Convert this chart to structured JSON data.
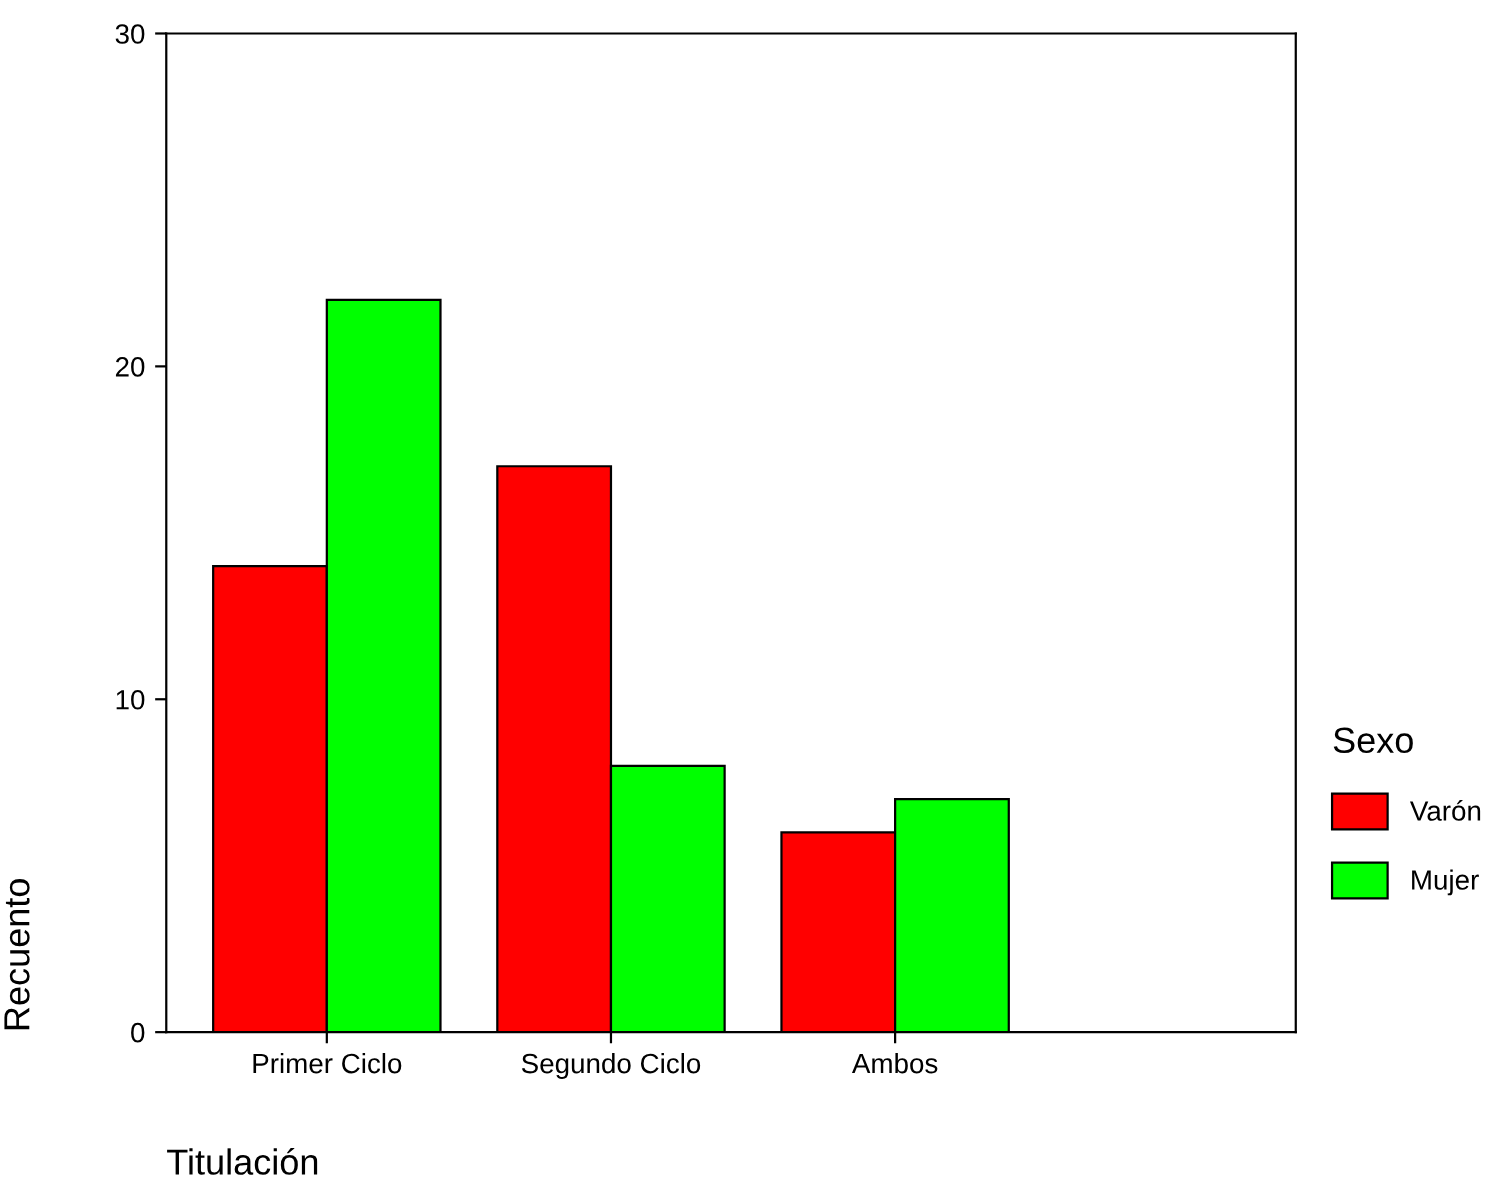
{
  "chart_data": {
    "type": "bar",
    "xlabel": "Titulación",
    "ylabel": "Recuento",
    "legend_title": "Sexo",
    "categories": [
      "Primer Ciclo",
      "Segundo Ciclo",
      "Ambos"
    ],
    "series": [
      {
        "name": "Varón",
        "color": "#ff0000",
        "values": [
          14,
          17,
          6
        ]
      },
      {
        "name": "Mujer",
        "color": "#00ff00",
        "values": [
          22,
          8,
          7
        ]
      }
    ],
    "ylim": [
      0,
      30
    ],
    "yticks": [
      0,
      10,
      20,
      30
    ],
    "grid": false,
    "legend": "right"
  }
}
